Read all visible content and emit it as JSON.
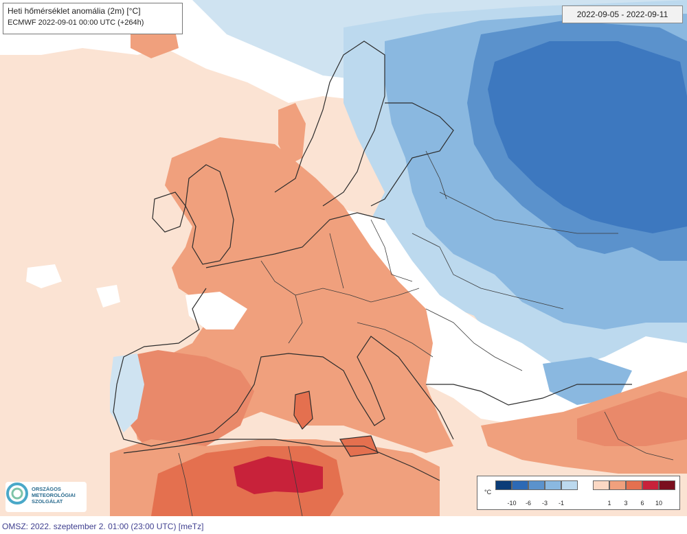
{
  "map": {
    "title": "Heti hőmérséklet anomália (2m) [°C]",
    "model_run": "ECMWF 2022-09-01 00:00 UTC (+264h)",
    "period": "2022-09-05 - 2022-09-11"
  },
  "logo": {
    "lines": [
      "ORSZÁGOS",
      "METEOROLÓGIAI",
      "SZOLGÁLAT"
    ]
  },
  "legend": {
    "unit": "°C",
    "cold_colors": [
      "#0b3c78",
      "#2c69b5",
      "#5b92cc",
      "#8ab8e0",
      "#bcd9ee"
    ],
    "warm_colors": [
      "#fbd8c4",
      "#f0a07d",
      "#e4704f",
      "#c8223a",
      "#7a0f1e"
    ],
    "cold_ticks": [
      "-10",
      "-6",
      "-3",
      "-1"
    ],
    "warm_ticks": [
      "1",
      "3",
      "6",
      "10"
    ]
  },
  "footer": {
    "text": "OMSZ: 2022. szeptember 2. 01:00 (23:00 UTC)  [meTz]"
  }
}
